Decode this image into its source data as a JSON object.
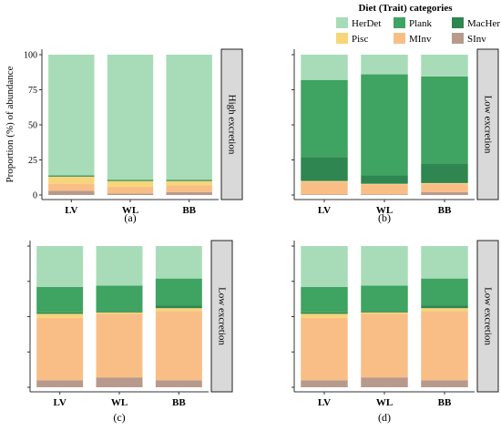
{
  "legend": {
    "title": "Diet (Trait) categories",
    "entries": [
      {
        "name": "HerDet",
        "color": "#a8dcb8"
      },
      {
        "name": "Plank",
        "color": "#3fa362"
      },
      {
        "name": "MacHer",
        "color": "#2f8650"
      },
      {
        "name": "Pisc",
        "color": "#f7d57a"
      },
      {
        "name": "MInv",
        "color": "#f9be86"
      },
      {
        "name": "SInv",
        "color": "#b89a8c"
      }
    ]
  },
  "chart_data": [
    {
      "type": "bar",
      "stacked": true,
      "panel_label": "(a)",
      "strip": "High excretion",
      "ylabel": "Proportion (%) of abundance",
      "yticks": [
        0,
        25,
        50,
        75,
        100
      ],
      "ylim": [
        0,
        100
      ],
      "categories": [
        "LV",
        "WL",
        "BB"
      ],
      "series": [
        {
          "name": "SInv",
          "values": [
            3,
            1,
            2
          ]
        },
        {
          "name": "MInv",
          "values": [
            5,
            5,
            5
          ]
        },
        {
          "name": "Pisc",
          "values": [
            5,
            4,
            3
          ]
        },
        {
          "name": "MacHer",
          "values": [
            0.5,
            0.5,
            0.5
          ]
        },
        {
          "name": "Plank",
          "values": [
            0.5,
            0.5,
            0.5
          ]
        },
        {
          "name": "HerDet",
          "values": [
            86,
            89,
            89
          ]
        }
      ]
    },
    {
      "type": "bar",
      "stacked": true,
      "panel_label": "(b)",
      "strip": "Low excretion",
      "ylim": [
        0,
        100
      ],
      "categories": [
        "LV",
        "WL",
        "BB"
      ],
      "series": [
        {
          "name": "SInv",
          "values": [
            0.5,
            0.5,
            2
          ]
        },
        {
          "name": "MInv",
          "values": [
            9,
            7,
            6
          ]
        },
        {
          "name": "Pisc",
          "values": [
            0.5,
            0.5,
            0.5
          ]
        },
        {
          "name": "MacHer",
          "values": [
            17,
            6,
            14
          ]
        },
        {
          "name": "Plank",
          "values": [
            55,
            72,
            62
          ]
        },
        {
          "name": "HerDet",
          "values": [
            18,
            14,
            15.5
          ]
        }
      ]
    },
    {
      "type": "bar",
      "stacked": true,
      "panel_label": "(c)",
      "strip": "Low excretion",
      "ylim": [
        0,
        100
      ],
      "categories": [
        "LV",
        "WL",
        "BB"
      ],
      "series": [
        {
          "name": "SInv",
          "values": [
            5,
            7,
            5
          ]
        },
        {
          "name": "MInv",
          "values": [
            44,
            45,
            49
          ]
        },
        {
          "name": "Pisc",
          "values": [
            3,
            1,
            2
          ]
        },
        {
          "name": "MacHer",
          "values": [
            1,
            1,
            2
          ]
        },
        {
          "name": "Plank",
          "values": [
            18,
            18,
            19
          ]
        },
        {
          "name": "HerDet",
          "values": [
            29,
            28,
            23
          ]
        }
      ]
    },
    {
      "type": "bar",
      "stacked": true,
      "panel_label": "(d)",
      "strip": "Low excretion",
      "ylim": [
        0,
        100
      ],
      "categories": [
        "LV",
        "WL",
        "BB"
      ],
      "series": [
        {
          "name": "SInv",
          "values": [
            5,
            7,
            5
          ]
        },
        {
          "name": "MInv",
          "values": [
            44,
            45,
            49
          ]
        },
        {
          "name": "Pisc",
          "values": [
            3,
            1,
            2
          ]
        },
        {
          "name": "MacHer",
          "values": [
            1,
            1,
            2
          ]
        },
        {
          "name": "Plank",
          "values": [
            18,
            18,
            19
          ]
        },
        {
          "name": "HerDet",
          "values": [
            29,
            28,
            23
          ]
        }
      ]
    }
  ]
}
